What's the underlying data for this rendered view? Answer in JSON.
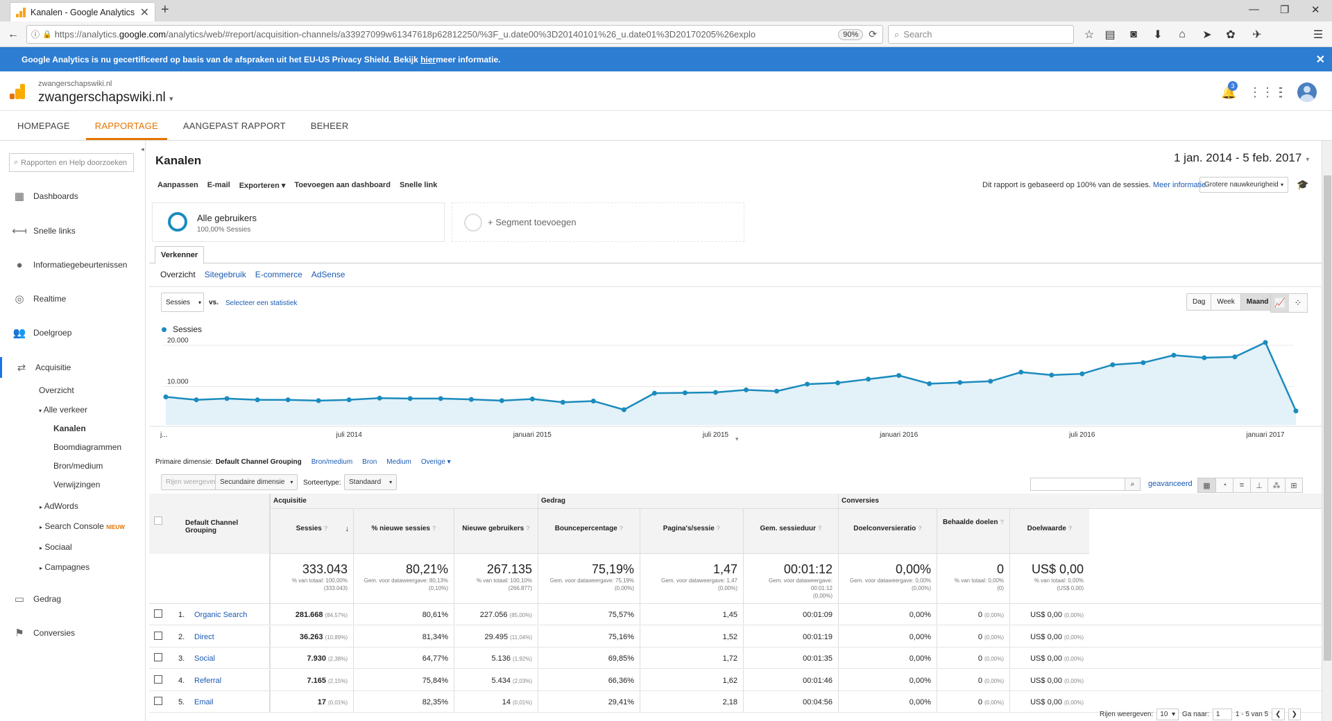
{
  "browser": {
    "tab_title": "Kanalen - Google Analytics",
    "url_prefix": "https://analytics.",
    "url_domain": "google.com",
    "url_rest": "/analytics/web/#report/acquisition-channels/a33927099w61347618p62812250/%3F_u.date00%3D20140101%26_u.date01%3D20170205%26explo",
    "zoom": "90%",
    "search_placeholder": "Search"
  },
  "banner": {
    "text_before": "Google Analytics is nu gecertificeerd op basis van de afspraken uit het EU-US Privacy Shield. Bekijk ",
    "link": "hier",
    "text_after": " meer informatie."
  },
  "ga_header": {
    "account": "zwangerschapswiki.nl",
    "property": "zwangerschapswiki.nl",
    "notifications": "3"
  },
  "topnav": [
    "HOMEPAGE",
    "RAPPORTAGE",
    "AANGEPAST RAPPORT",
    "BEHEER"
  ],
  "sidebar": {
    "search_placeholder": "Rapporten en Help doorzoeken",
    "items": [
      {
        "label": "Dashboards",
        "icon": "grid-icon"
      },
      {
        "label": "Snelle links",
        "icon": "arrow-left-icon"
      },
      {
        "label": "Informatiegebeurtenissen",
        "icon": "lightbulb-icon"
      },
      {
        "label": "Realtime",
        "icon": "realtime-icon"
      },
      {
        "label": "Doelgroep",
        "icon": "people-icon"
      },
      {
        "label": "Acquisitie",
        "icon": "acquisition-icon"
      },
      {
        "label": "Gedrag",
        "icon": "behavior-icon"
      },
      {
        "label": "Conversies",
        "icon": "flag-icon"
      }
    ],
    "sub": {
      "overzicht": "Overzicht",
      "alle_verkeer": "Alle verkeer",
      "kanalen": "Kanalen",
      "boomdiagrammen": "Boomdiagrammen",
      "bron_medium": "Bron/medium",
      "verwijzingen": "Verwijzingen",
      "adwords": "AdWords",
      "search_console": "Search Console",
      "nieuw": "NIEUW",
      "sociaal": "Sociaal",
      "campagnes": "Campagnes"
    }
  },
  "report": {
    "title": "Kanalen",
    "date_range": "1 jan. 2014 - 5 feb. 2017",
    "actions": [
      "Aanpassen",
      "E-mail",
      "Exporteren ▾",
      "Toevoegen aan dashboard",
      "Snelle link"
    ],
    "sampling_text": "Dit rapport is gebaseerd op 100% van de sessies.",
    "sampling_link": "Meer informatie",
    "accuracy": "Grotere nauwkeurigheid",
    "segment_name": "Alle gebruikers",
    "segment_sub": "100,00% Sessies",
    "add_segment": "+ Segment toevoegen",
    "explorer_tab": "Verkenner",
    "subtabs": [
      "Overzicht",
      "Sitegebruik",
      "E-commerce",
      "AdSense"
    ],
    "metric": "Sessies",
    "vs": "vs.",
    "select_metric": "Selecteer een statistiek",
    "granularity": [
      "Dag",
      "Week",
      "Maand"
    ],
    "primary_dim_label": "Primaire dimensie:",
    "primary_dims": [
      "Default Channel Grouping",
      "Bron/medium",
      "Bron",
      "Medium",
      "Overige ▾"
    ],
    "rows_btn": "Rijen weergeven",
    "secondary_dim": "Secundaire dimensie",
    "sort_label": "Sorteertype:",
    "sort_value": "Standaard",
    "advanced": "geavanceerd"
  },
  "chart_data": {
    "type": "area",
    "series": [
      {
        "name": "Sessies",
        "values": [
          6800,
          6100,
          6400,
          6100,
          6100,
          5900,
          6100,
          6500,
          6400,
          6400,
          6200,
          5900,
          6300,
          5500,
          5800,
          3700,
          7700,
          7800,
          7900,
          8500,
          8200,
          9900,
          10200,
          11100,
          12000,
          10000,
          10300,
          10600,
          12800,
          12100,
          12400,
          14600,
          15100,
          16900,
          16300,
          16500,
          20000,
          3400
        ]
      }
    ],
    "x_tick_labels": [
      "j...",
      "juli 2014",
      "januari 2015",
      "juli 2015",
      "januari 2016",
      "juli 2016",
      "januari 2017"
    ],
    "y_tick_labels": [
      "20.000",
      "10.000"
    ],
    "ylim": [
      0,
      21000
    ],
    "grid": true
  },
  "table": {
    "header": {
      "dimension": "Default Channel Grouping",
      "groups": [
        "Acquisitie",
        "Gedrag",
        "Conversies"
      ],
      "columns": [
        "Sessies",
        "% nieuwe sessies",
        "Nieuwe gebruikers",
        "Bouncepercentage",
        "Pagina's/sessie",
        "Gem. sessieduur",
        "Doelconversieratio",
        "Behaalde doelen",
        "Doelwaarde"
      ]
    },
    "totals": [
      {
        "value": "333.043",
        "sub1": "% van totaal: 100,00%",
        "sub2": "(333.043)"
      },
      {
        "value": "80,21%",
        "sub1": "Gem. voor dataweergave: 80,13%",
        "sub2": "(0,10%)"
      },
      {
        "value": "267.135",
        "sub1": "% van totaal: 100,10%",
        "sub2": "(266.877)"
      },
      {
        "value": "75,19%",
        "sub1": "Gem. voor dataweergave: 75,19%",
        "sub2": "(0,00%)"
      },
      {
        "value": "1,47",
        "sub1": "Gem. voor dataweergave: 1,47",
        "sub2": "(0,00%)"
      },
      {
        "value": "00:01:12",
        "sub1": "Gem. voor dataweergave: 00:01:12",
        "sub2": "(0,00%)"
      },
      {
        "value": "0,00%",
        "sub1": "Gem. voor dataweergave: 0,00%",
        "sub2": "(0,00%)"
      },
      {
        "value": "0",
        "sub1": "% van totaal: 0,00%",
        "sub2": "(0)"
      },
      {
        "value": "US$ 0,00",
        "sub1": "% van totaal: 0,00%",
        "sub2": "(US$ 0,00)"
      }
    ],
    "rows": [
      {
        "num": "1.",
        "channel": "Organic Search",
        "sessions": "281.668",
        "sessions_pct": "(84,57%)",
        "new_sessions": "80,61%",
        "new_users": "227.056",
        "new_users_pct": "(85,00%)",
        "bounce": "75,57%",
        "pages": "1,45",
        "duration": "00:01:09",
        "conv": "0,00%",
        "goals": "0",
        "goals_pct": "(0,00%)",
        "value": "US$ 0,00",
        "value_pct": "(0,00%)"
      },
      {
        "num": "2.",
        "channel": "Direct",
        "sessions": "36.263",
        "sessions_pct": "(10,89%)",
        "new_sessions": "81,34%",
        "new_users": "29.495",
        "new_users_pct": "(11,04%)",
        "bounce": "75,16%",
        "pages": "1,52",
        "duration": "00:01:19",
        "conv": "0,00%",
        "goals": "0",
        "goals_pct": "(0,00%)",
        "value": "US$ 0,00",
        "value_pct": "(0,00%)"
      },
      {
        "num": "3.",
        "channel": "Social",
        "sessions": "7.930",
        "sessions_pct": "(2,38%)",
        "new_sessions": "64,77%",
        "new_users": "5.136",
        "new_users_pct": "(1,92%)",
        "bounce": "69,85%",
        "pages": "1,72",
        "duration": "00:01:35",
        "conv": "0,00%",
        "goals": "0",
        "goals_pct": "(0,00%)",
        "value": "US$ 0,00",
        "value_pct": "(0,00%)"
      },
      {
        "num": "4.",
        "channel": "Referral",
        "sessions": "7.165",
        "sessions_pct": "(2,15%)",
        "new_sessions": "75,84%",
        "new_users": "5.434",
        "new_users_pct": "(2,03%)",
        "bounce": "66,36%",
        "pages": "1,62",
        "duration": "00:01:46",
        "conv": "0,00%",
        "goals": "0",
        "goals_pct": "(0,00%)",
        "value": "US$ 0,00",
        "value_pct": "(0,00%)"
      },
      {
        "num": "5.",
        "channel": "Email",
        "sessions": "17",
        "sessions_pct": "(0,01%)",
        "new_sessions": "82,35%",
        "new_users": "14",
        "new_users_pct": "(0,01%)",
        "bounce": "29,41%",
        "pages": "2,18",
        "duration": "00:04:56",
        "conv": "0,00%",
        "goals": "0",
        "goals_pct": "(0,00%)",
        "value": "US$ 0,00",
        "value_pct": "(0,00%)"
      }
    ]
  },
  "pager": {
    "rows_label": "Rijen weergeven:",
    "rows_value": "10",
    "goto_label": "Ga naar:",
    "goto_value": "1",
    "range": "1 - 5 van 5"
  },
  "colors": {
    "accent_orange": "#e37400",
    "banner_blue": "#2d7dd2",
    "chart_line": "#1a8bbd",
    "chart_fill": "#e3f1f8"
  }
}
